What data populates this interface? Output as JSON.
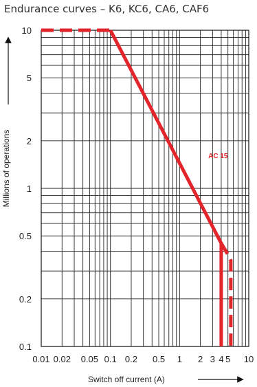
{
  "chart_data": {
    "type": "line",
    "title": "Endurance curves – K6, KC6, CA6, CAF6",
    "xlabel": "Switch off current  (A)",
    "ylabel": "Millions of operations",
    "xscale": "log",
    "yscale": "log",
    "xlim": [
      0.01,
      10
    ],
    "ylim": [
      0.1,
      10
    ],
    "grid": true,
    "x_ticks": [
      0.01,
      0.02,
      0.05,
      0.1,
      0.2,
      0.5,
      1,
      2,
      3,
      4,
      5,
      10
    ],
    "x_tick_labels": [
      "0.01",
      "0.02",
      "0.05",
      "0.1",
      "0.2",
      "0.5",
      "1",
      "2",
      "3",
      "4",
      "5",
      "10"
    ],
    "y_ticks": [
      0.1,
      0.2,
      0.5,
      1,
      2,
      5,
      10
    ],
    "y_tick_labels": [
      "0.1",
      "0.2",
      "0.5",
      "1",
      "2",
      "5",
      "10"
    ],
    "line_color": "#e2242b",
    "series": [
      {
        "name": "AC 15",
        "style": "solid",
        "x": [
          0.1,
          4.0,
          4.0
        ],
        "y": [
          10,
          0.45,
          0.1
        ]
      },
      {
        "style": "dashed",
        "x": [
          0.01,
          0.1
        ],
        "y": [
          10,
          10
        ]
      },
      {
        "style": "dashed",
        "x": [
          4.0,
          5.2,
          5.5,
          5.5
        ],
        "y": [
          0.45,
          0.37,
          0.35,
          0.1
        ]
      }
    ],
    "annotations": [
      {
        "text": "AC 15",
        "x": 2.6,
        "y": 1.55
      }
    ]
  }
}
